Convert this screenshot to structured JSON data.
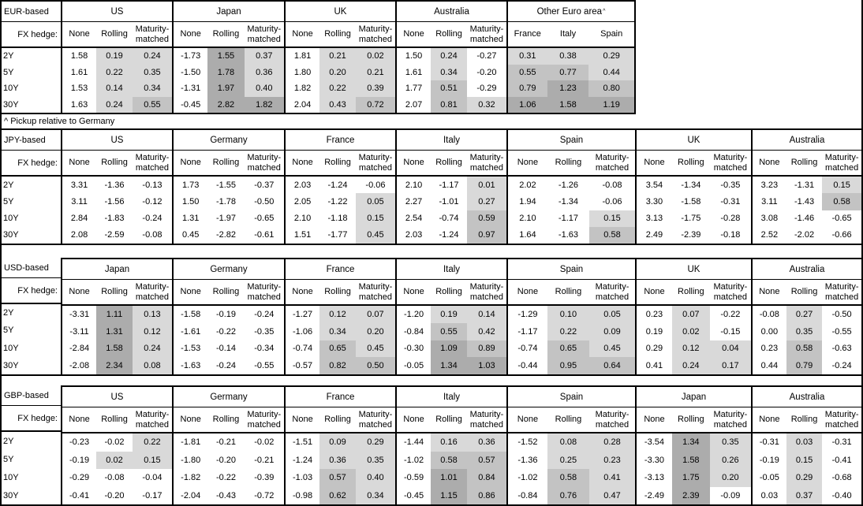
{
  "page": {
    "background": "#ffffff",
    "frame_color": "#000000"
  },
  "shading": {
    "description": "positive values in hedged/pickup columns get gray heat shading",
    "thresholds": [
      0.5,
      1.0
    ],
    "colors": {
      "light": "#d9d9d9",
      "medium": "#c3c3c3",
      "dark": "#acacac"
    }
  },
  "tables": [
    {
      "id": "eur",
      "layout": "eur",
      "top_border_over_label": true,
      "label": "EUR-based",
      "fx_hedge_label": "FX hedge:",
      "row_labels": [
        "2Y",
        "5Y",
        "10Y",
        "30Y"
      ],
      "note_below": "^ Pickup relative to Germany",
      "groups": [
        {
          "name": "US",
          "columns": [
            "None",
            "Rolling",
            "Maturity-matched"
          ],
          "shaded_columns": [
            false,
            true,
            true
          ],
          "values": [
            [
              "1.58",
              "0.19",
              "0.24"
            ],
            [
              "1.61",
              "0.22",
              "0.35"
            ],
            [
              "1.53",
              "0.14",
              "0.34"
            ],
            [
              "1.63",
              "0.24",
              "0.55"
            ]
          ]
        },
        {
          "name": "Japan",
          "columns": [
            "None",
            "Rolling",
            "Maturity-matched"
          ],
          "shaded_columns": [
            false,
            true,
            true
          ],
          "values": [
            [
              "-1.73",
              "1.55",
              "0.37"
            ],
            [
              "-1.50",
              "1.78",
              "0.36"
            ],
            [
              "-1.31",
              "1.97",
              "0.40"
            ],
            [
              "-0.45",
              "2.82",
              "1.82"
            ]
          ]
        },
        {
          "name": "UK",
          "columns": [
            "None",
            "Rolling",
            "Maturity-matched"
          ],
          "shaded_columns": [
            false,
            true,
            true
          ],
          "values": [
            [
              "1.81",
              "0.21",
              "0.02"
            ],
            [
              "1.80",
              "0.20",
              "0.21"
            ],
            [
              "1.82",
              "0.22",
              "0.39"
            ],
            [
              "2.04",
              "0.43",
              "0.72"
            ]
          ]
        },
        {
          "name": "Australia",
          "columns": [
            "None",
            "Rolling",
            "Maturity-matched"
          ],
          "shaded_columns": [
            false,
            true,
            true
          ],
          "values": [
            [
              "1.50",
              "0.24",
              "-0.27"
            ],
            [
              "1.61",
              "0.34",
              "-0.20"
            ],
            [
              "1.77",
              "0.51",
              "-0.29"
            ],
            [
              "2.07",
              "0.81",
              "0.32"
            ]
          ]
        },
        {
          "name": "Other Euro area",
          "sup": "^",
          "columns": [
            "France",
            "Italy",
            "Spain"
          ],
          "shaded_columns": [
            true,
            true,
            true
          ],
          "values": [
            [
              "0.31",
              "0.38",
              "0.29"
            ],
            [
              "0.55",
              "0.77",
              "0.44"
            ],
            [
              "0.79",
              "1.23",
              "0.80"
            ],
            [
              "1.06",
              "1.58",
              "1.19"
            ]
          ]
        }
      ]
    },
    {
      "id": "jpy",
      "layout": "full",
      "top_border_over_label": true,
      "label": "JPY-based",
      "fx_hedge_label": "FX hedge:",
      "row_labels": [
        "2Y",
        "5Y",
        "10Y",
        "30Y"
      ],
      "groups": [
        {
          "name": "US",
          "columns": [
            "None",
            "Rolling",
            "Maturity-matched"
          ],
          "shaded_columns": [
            false,
            true,
            true
          ],
          "values": [
            [
              "3.31",
              "-1.36",
              "-0.13"
            ],
            [
              "3.11",
              "-1.56",
              "-0.12"
            ],
            [
              "2.84",
              "-1.83",
              "-0.24"
            ],
            [
              "2.08",
              "-2.59",
              "-0.08"
            ]
          ]
        },
        {
          "name": "Germany",
          "columns": [
            "None",
            "Rolling",
            "Maturity-matched"
          ],
          "shaded_columns": [
            false,
            true,
            true
          ],
          "values": [
            [
              "1.73",
              "-1.55",
              "-0.37"
            ],
            [
              "1.50",
              "-1.78",
              "-0.50"
            ],
            [
              "1.31",
              "-1.97",
              "-0.65"
            ],
            [
              "0.45",
              "-2.82",
              "-0.61"
            ]
          ]
        },
        {
          "name": "France",
          "columns": [
            "None",
            "Rolling",
            "Maturity-matched"
          ],
          "shaded_columns": [
            false,
            true,
            true
          ],
          "values": [
            [
              "2.03",
              "-1.24",
              "-0.06"
            ],
            [
              "2.05",
              "-1.22",
              "0.05"
            ],
            [
              "2.10",
              "-1.18",
              "0.15"
            ],
            [
              "1.51",
              "-1.77",
              "0.45"
            ]
          ]
        },
        {
          "name": "Italy",
          "columns": [
            "None",
            "Rolling",
            "Maturity-matched"
          ],
          "shaded_columns": [
            false,
            true,
            true
          ],
          "values": [
            [
              "2.10",
              "-1.17",
              "0.01"
            ],
            [
              "2.27",
              "-1.01",
              "0.27"
            ],
            [
              "2.54",
              "-0.74",
              "0.59"
            ],
            [
              "2.03",
              "-1.24",
              "0.97"
            ]
          ]
        },
        {
          "name": "Spain",
          "columns": [
            "None",
            "Rolling",
            "Maturity-matched"
          ],
          "shaded_columns": [
            false,
            true,
            true
          ],
          "values": [
            [
              "2.02",
              "-1.26",
              "-0.08"
            ],
            [
              "1.94",
              "-1.34",
              "-0.06"
            ],
            [
              "2.10",
              "-1.17",
              "0.15"
            ],
            [
              "1.64",
              "-1.63",
              "0.58"
            ]
          ]
        },
        {
          "name": "UK",
          "columns": [
            "None",
            "Rolling",
            "Maturity-matched"
          ],
          "shaded_columns": [
            false,
            true,
            true
          ],
          "values": [
            [
              "3.54",
              "-1.34",
              "-0.35"
            ],
            [
              "3.30",
              "-1.58",
              "-0.31"
            ],
            [
              "3.13",
              "-1.75",
              "-0.28"
            ],
            [
              "2.49",
              "-2.39",
              "-0.18"
            ]
          ]
        },
        {
          "name": "Australia",
          "columns": [
            "None",
            "Rolling",
            "Maturity-matched"
          ],
          "shaded_columns": [
            false,
            true,
            true
          ],
          "values": [
            [
              "3.23",
              "-1.31",
              "0.15"
            ],
            [
              "3.11",
              "-1.43",
              "0.58"
            ],
            [
              "3.08",
              "-1.46",
              "-0.65"
            ],
            [
              "2.52",
              "-2.02",
              "-0.66"
            ]
          ]
        }
      ]
    },
    {
      "id": "usd",
      "layout": "full",
      "top_border_over_label": false,
      "label": "USD-based",
      "fx_hedge_label": "FX hedge:",
      "row_labels": [
        "2Y",
        "5Y",
        "10Y",
        "30Y"
      ],
      "groups": [
        {
          "name": "Japan",
          "columns": [
            "None",
            "Rolling",
            "Maturity-matched"
          ],
          "shaded_columns": [
            false,
            true,
            true
          ],
          "values": [
            [
              "-3.31",
              "1.11",
              "0.13"
            ],
            [
              "-3.11",
              "1.31",
              "0.12"
            ],
            [
              "-2.84",
              "1.58",
              "0.24"
            ],
            [
              "-2.08",
              "2.34",
              "0.08"
            ]
          ]
        },
        {
          "name": "Germany",
          "columns": [
            "None",
            "Rolling",
            "Maturity-matched"
          ],
          "shaded_columns": [
            false,
            true,
            true
          ],
          "values": [
            [
              "-1.58",
              "-0.19",
              "-0.24"
            ],
            [
              "-1.61",
              "-0.22",
              "-0.35"
            ],
            [
              "-1.53",
              "-0.14",
              "-0.34"
            ],
            [
              "-1.63",
              "-0.24",
              "-0.55"
            ]
          ]
        },
        {
          "name": "France",
          "columns": [
            "None",
            "Rolling",
            "Maturity-matched"
          ],
          "shaded_columns": [
            false,
            true,
            true
          ],
          "values": [
            [
              "-1.27",
              "0.12",
              "0.07"
            ],
            [
              "-1.06",
              "0.34",
              "0.20"
            ],
            [
              "-0.74",
              "0.65",
              "0.45"
            ],
            [
              "-0.57",
              "0.82",
              "0.50"
            ]
          ]
        },
        {
          "name": "Italy",
          "columns": [
            "None",
            "Rolling",
            "Maturity-matched"
          ],
          "shaded_columns": [
            false,
            true,
            true
          ],
          "values": [
            [
              "-1.20",
              "0.19",
              "0.14"
            ],
            [
              "-0.84",
              "0.55",
              "0.42"
            ],
            [
              "-0.30",
              "1.09",
              "0.89"
            ],
            [
              "-0.05",
              "1.34",
              "1.03"
            ]
          ]
        },
        {
          "name": "Spain",
          "columns": [
            "None",
            "Rolling",
            "Maturity-matched"
          ],
          "shaded_columns": [
            false,
            true,
            true
          ],
          "values": [
            [
              "-1.29",
              "0.10",
              "0.05"
            ],
            [
              "-1.17",
              "0.22",
              "0.09"
            ],
            [
              "-0.74",
              "0.65",
              "0.45"
            ],
            [
              "-0.44",
              "0.95",
              "0.64"
            ]
          ]
        },
        {
          "name": "UK",
          "columns": [
            "None",
            "Rolling",
            "Maturity-matched"
          ],
          "shaded_columns": [
            false,
            true,
            true
          ],
          "values": [
            [
              "0.23",
              "0.07",
              "-0.22"
            ],
            [
              "0.19",
              "0.02",
              "-0.15"
            ],
            [
              "0.29",
              "0.12",
              "0.04"
            ],
            [
              "0.41",
              "0.24",
              "0.17"
            ]
          ]
        },
        {
          "name": "Australia",
          "columns": [
            "None",
            "Rolling",
            "Maturity-matched"
          ],
          "shaded_columns": [
            false,
            true,
            true
          ],
          "values": [
            [
              "-0.08",
              "0.27",
              "-0.50"
            ],
            [
              "0.00",
              "0.35",
              "-0.55"
            ],
            [
              "0.23",
              "0.58",
              "-0.63"
            ],
            [
              "0.44",
              "0.79",
              "-0.24"
            ]
          ]
        }
      ]
    },
    {
      "id": "gbp",
      "layout": "full",
      "top_border_over_label": false,
      "label": "GBP-based",
      "fx_hedge_label": "FX hedge:",
      "row_labels": [
        "2Y",
        "5Y",
        "10Y",
        "30Y"
      ],
      "groups": [
        {
          "name": "US",
          "columns": [
            "None",
            "Rolling",
            "Maturity-matched"
          ],
          "shaded_columns": [
            false,
            true,
            true
          ],
          "values": [
            [
              "-0.23",
              "-0.02",
              "0.22"
            ],
            [
              "-0.19",
              "0.02",
              "0.15"
            ],
            [
              "-0.29",
              "-0.08",
              "-0.04"
            ],
            [
              "-0.41",
              "-0.20",
              "-0.17"
            ]
          ]
        },
        {
          "name": "Germany",
          "columns": [
            "None",
            "Rolling",
            "Maturity-matched"
          ],
          "shaded_columns": [
            false,
            true,
            true
          ],
          "values": [
            [
              "-1.81",
              "-0.21",
              "-0.02"
            ],
            [
              "-1.80",
              "-0.20",
              "-0.21"
            ],
            [
              "-1.82",
              "-0.22",
              "-0.39"
            ],
            [
              "-2.04",
              "-0.43",
              "-0.72"
            ]
          ]
        },
        {
          "name": "France",
          "columns": [
            "None",
            "Rolling",
            "Maturity-matched"
          ],
          "shaded_columns": [
            false,
            true,
            true
          ],
          "values": [
            [
              "-1.51",
              "0.09",
              "0.29"
            ],
            [
              "-1.24",
              "0.36",
              "0.35"
            ],
            [
              "-1.03",
              "0.57",
              "0.40"
            ],
            [
              "-0.98",
              "0.62",
              "0.34"
            ]
          ]
        },
        {
          "name": "Italy",
          "columns": [
            "None",
            "Rolling",
            "Maturity-matched"
          ],
          "shaded_columns": [
            false,
            true,
            true
          ],
          "values": [
            [
              "-1.44",
              "0.16",
              "0.36"
            ],
            [
              "-1.02",
              "0.58",
              "0.57"
            ],
            [
              "-0.59",
              "1.01",
              "0.84"
            ],
            [
              "-0.45",
              "1.15",
              "0.86"
            ]
          ]
        },
        {
          "name": "Spain",
          "columns": [
            "None",
            "Rolling",
            "Maturity-matched"
          ],
          "shaded_columns": [
            false,
            true,
            true
          ],
          "values": [
            [
              "-1.52",
              "0.08",
              "0.28"
            ],
            [
              "-1.36",
              "0.25",
              "0.23"
            ],
            [
              "-1.02",
              "0.58",
              "0.41"
            ],
            [
              "-0.84",
              "0.76",
              "0.47"
            ]
          ]
        },
        {
          "name": "Japan",
          "columns": [
            "None",
            "Rolling",
            "Maturity-matched"
          ],
          "shaded_columns": [
            false,
            true,
            true
          ],
          "values": [
            [
              "-3.54",
              "1.34",
              "0.35"
            ],
            [
              "-3.30",
              "1.58",
              "0.26"
            ],
            [
              "-3.13",
              "1.75",
              "0.20"
            ],
            [
              "-2.49",
              "2.39",
              "-0.09"
            ]
          ]
        },
        {
          "name": "Australia",
          "columns": [
            "None",
            "Rolling",
            "Maturity-matched"
          ],
          "shaded_columns": [
            false,
            true,
            true
          ],
          "values": [
            [
              "-0.31",
              "0.03",
              "-0.31"
            ],
            [
              "-0.19",
              "0.15",
              "-0.41"
            ],
            [
              "-0.05",
              "0.29",
              "-0.68"
            ],
            [
              "0.03",
              "0.37",
              "-0.40"
            ]
          ]
        }
      ]
    }
  ]
}
